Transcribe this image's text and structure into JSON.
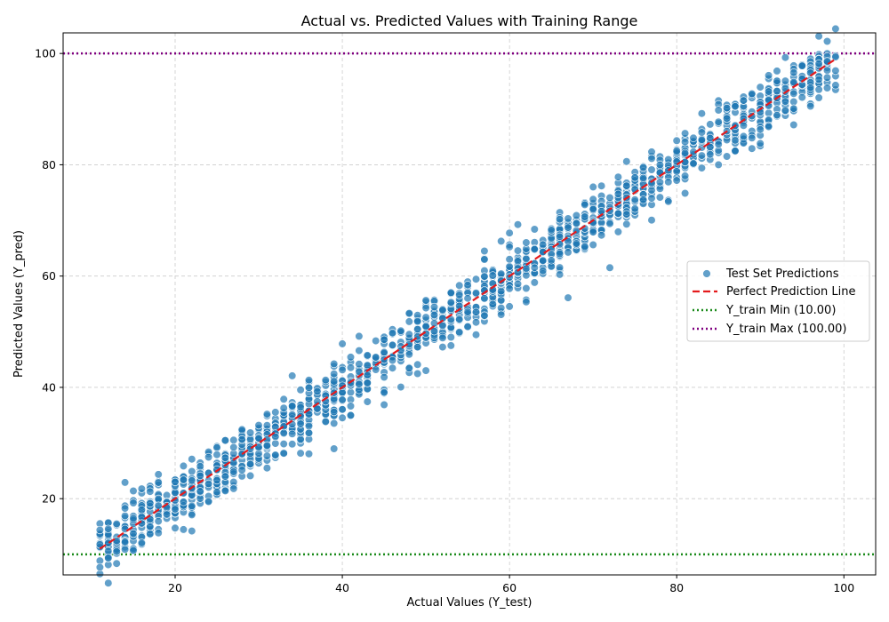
{
  "chart_data": {
    "type": "scatter",
    "title": "Actual vs. Predicted Values with Training Range",
    "xlabel": "Actual Values (Y_test)",
    "ylabel": "Predicted Values (Y_pred)",
    "xlim": [
      6.6,
      103.8
    ],
    "ylim": [
      6.3,
      103.7
    ],
    "xticks": [
      20,
      40,
      60,
      80,
      100
    ],
    "yticks": [
      20,
      40,
      60,
      80,
      100
    ],
    "grid": true,
    "legend_position": "center-right",
    "points": {
      "name": "Test Set Predictions",
      "color": "#1f77b4",
      "x_range": [
        11,
        99
      ],
      "noise_sd": 2.6,
      "count": 1500
    },
    "perfect_line": {
      "name": "Perfect Prediction Line",
      "color": "#e41a1c",
      "x": [
        11,
        99
      ],
      "y": [
        11,
        99
      ]
    },
    "train_min": {
      "name": "Y_train Min (10.00)",
      "value": 10,
      "color": "#1a8a1a"
    },
    "train_max": {
      "name": "Y_train Max (100.00)",
      "value": 100,
      "color": "#800080"
    }
  }
}
